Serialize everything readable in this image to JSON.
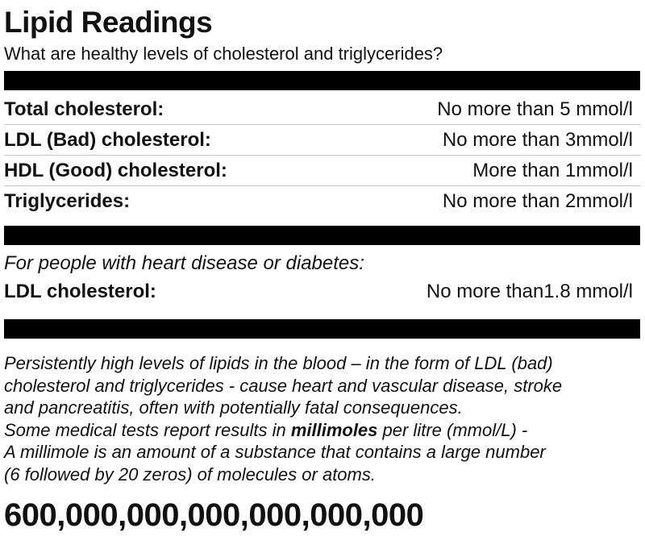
{
  "header": {
    "title": "Lipid Readings",
    "subtitle": "What are healthy levels of cholesterol and triglycerides?"
  },
  "healthy_levels": [
    {
      "label": "Total cholesterol:",
      "value": "No more than 5 mmol/l"
    },
    {
      "label": "LDL (Bad) cholesterol:",
      "value": "No more than 3mmol/l"
    },
    {
      "label": "HDL (Good) cholesterol:",
      "value": "More than 1mmol/l"
    },
    {
      "label": "Triglycerides:",
      "value": "No more than 2mmol/l"
    }
  ],
  "special_group": {
    "note": "For people with heart disease or diabetes:",
    "label": "LDL cholesterol:",
    "value": "No more than1.8 mmol/l"
  },
  "explanation": {
    "line1": "Persistently high levels of lipids in the blood – in the form of LDL (bad)",
    "line2": "cholesterol and triglycerides - cause heart and vascular disease, stroke",
    "line3": "and pancreatitis, often with potentially fatal consequences.",
    "line4_before": "Some medical tests report results in ",
    "line4_bold": "millimoles",
    "line4_after": " per litre (mmol/L) -",
    "line5": "A millimole is an amount of a substance that contains a large number",
    "line6": "(6 followed by 20 zeros) of molecules or atoms."
  },
  "big_number": "600,000,000,000,000,000,000"
}
